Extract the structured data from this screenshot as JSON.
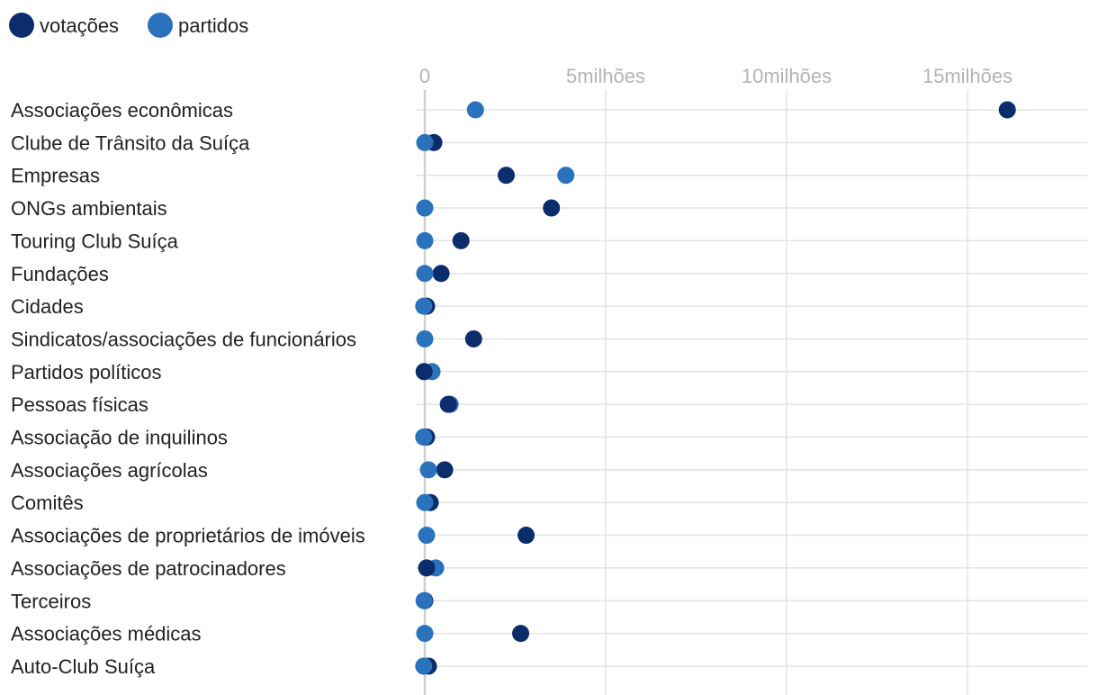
{
  "colors": {
    "votacoes": "#0b2d6b",
    "partidos": "#2a72bb",
    "grid": "#e3e3e3",
    "axis": "#cfcfcf",
    "text": "#222222",
    "tick": "#b4b4b4"
  },
  "legend": [
    {
      "name": "votações",
      "color": "#0b2d6b"
    },
    {
      "name": "partidos",
      "color": "#2a72bb"
    }
  ],
  "chart_data": {
    "type": "scatter",
    "title": "",
    "xlabel": "",
    "ylabel": "",
    "xlim": [
      0,
      18000000
    ],
    "x_ticks": [
      0,
      5000000,
      10000000,
      15000000
    ],
    "x_tick_labels": [
      "0",
      "5milhões",
      "10milhões",
      "15milhões"
    ],
    "grid": true,
    "legend_position": "top-left",
    "categories": [
      "Associações econômicas",
      "Clube de Trânsito da Suíça",
      "Empresas",
      "ONGs ambientais",
      "Touring Club Suíça",
      "Fundações",
      "Cidades",
      "Sindicatos/associações de funcionários",
      "Partidos políticos",
      "Pessoas físicas",
      "Associação de inquilinos",
      "Associações agrícolas",
      "Comitês",
      "Associações de proprietários de imóveis",
      "Associações de patrocinadores",
      "Terceiros",
      "Associações médicas",
      "Auto-Club Suíça"
    ],
    "series": [
      {
        "name": "votações",
        "color": "#0b2d6b",
        "values": [
          16100000,
          250000,
          2250000,
          3500000,
          1000000,
          450000,
          50000,
          1350000,
          -20000,
          650000,
          50000,
          550000,
          150000,
          2800000,
          50000,
          0,
          2650000,
          100000
        ]
      },
      {
        "name": "partidos",
        "color": "#2a72bb",
        "values": [
          1400000,
          0,
          3900000,
          0,
          0,
          0,
          -30000,
          0,
          200000,
          700000,
          -30000,
          100000,
          0,
          50000,
          300000,
          -20000,
          0,
          -30000
        ]
      }
    ]
  }
}
